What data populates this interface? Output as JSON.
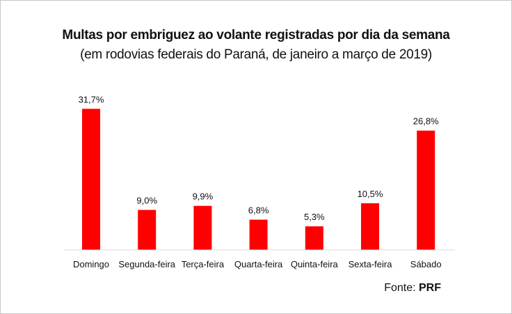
{
  "chart_data": {
    "type": "bar",
    "title": "Multas por embriguez ao volante registradas por dia da semana",
    "subtitle": "(em rodovias federais do Paraná, de janeiro a março de 2019)",
    "categories": [
      "Domingo",
      "Segunda-feira",
      "Terça-feira",
      "Quarta-feira",
      "Quinta-feira",
      "Sexta-feira",
      "Sábado"
    ],
    "values": [
      31.7,
      9.0,
      9.9,
      6.8,
      5.3,
      10.5,
      26.8
    ],
    "data_labels": [
      "31,7%",
      "9,0%",
      "9,9%",
      "6,8%",
      "5,3%",
      "10,5%",
      "26,8%"
    ],
    "bar_color": "#ff0000",
    "ylim": [
      0,
      33
    ],
    "grid": false,
    "legend": "none"
  },
  "source": {
    "label": "Fonte: ",
    "name": "PRF"
  }
}
